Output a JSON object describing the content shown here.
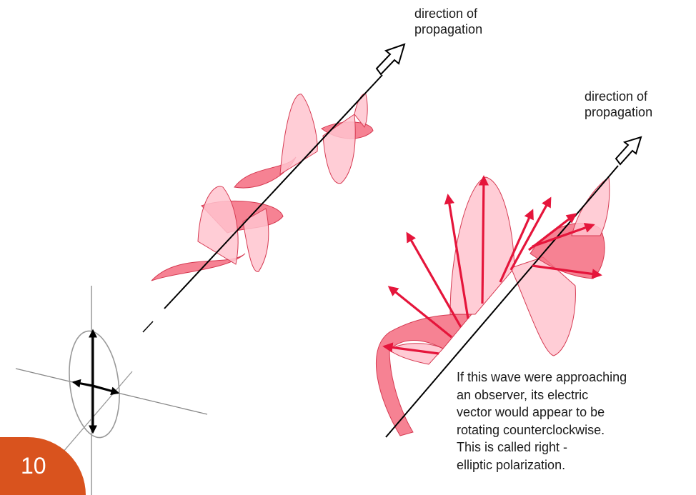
{
  "labels": {
    "left_direction": [
      "direction of",
      "propagation"
    ],
    "right_direction": [
      "direction of",
      "propagation"
    ]
  },
  "caption": [
    "If this wave were approaching",
    "an observer, its electric",
    "vector would appear to be",
    "rotating counterclockwise.",
    "This is called right -",
    "elliptic polarization."
  ],
  "slide_number": "10",
  "colors": {
    "wave_fill": "#ffc4cf",
    "wave_fill_dark": "#f46c80",
    "wave_stroke": "#d63a52",
    "vector": "#e5153b",
    "axis": "#000000",
    "badge": "#d9531e"
  }
}
